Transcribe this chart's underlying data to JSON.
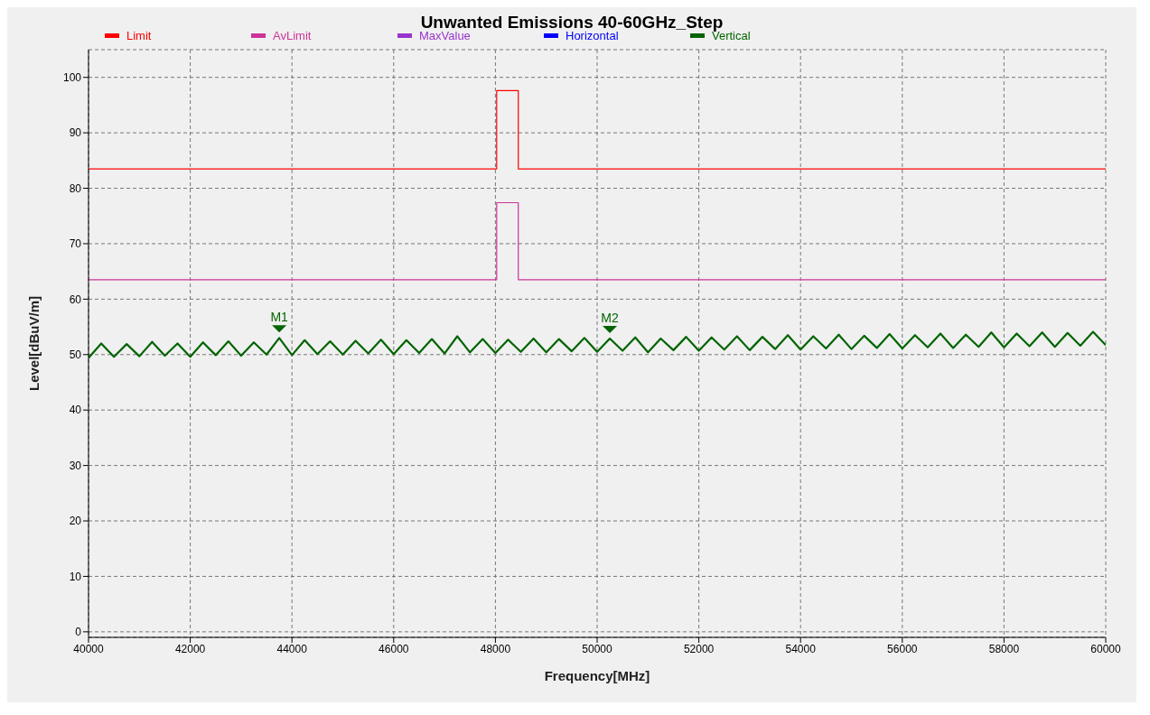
{
  "chart_data": {
    "type": "line",
    "title": "Unwanted Emissions 40-60GHz_Step",
    "xlabel": "Frequency[MHz]",
    "ylabel": "Level[dBuV/m]",
    "xlim": [
      40000,
      60000
    ],
    "xticks": [
      40000,
      42000,
      44000,
      46000,
      48000,
      50000,
      52000,
      54000,
      56000,
      58000,
      60000
    ],
    "ylim": [
      -1,
      105
    ],
    "yticks": [
      0,
      10,
      20,
      30,
      40,
      50,
      60,
      70,
      80,
      90,
      100
    ],
    "grid": true,
    "legend": "top",
    "marker": "none",
    "line_style": "solid",
    "series": [
      {
        "name": "Limit",
        "color": "#ff0000",
        "x": [
          40000,
          48025,
          48025,
          48450,
          48450,
          60000
        ],
        "values": [
          83.5,
          83.5,
          97.6,
          97.6,
          83.5,
          83.5
        ]
      },
      {
        "name": "AvLimit",
        "color": "#cc3399",
        "x": [
          40000,
          48025,
          48025,
          48450,
          48450,
          60000
        ],
        "values": [
          63.5,
          63.5,
          77.4,
          77.4,
          63.5,
          63.5
        ]
      },
      {
        "name": "MaxValue",
        "color": "#9933cc"
      },
      {
        "name": "Horizontal",
        "color": "#0000ff"
      },
      {
        "name": "Vertical",
        "color": "#006400",
        "x": [
          40000,
          40250,
          40500,
          40750,
          41000,
          41250,
          41500,
          41750,
          42000,
          42250,
          42500,
          42750,
          43000,
          43250,
          43500,
          43750,
          44000,
          44250,
          44500,
          44750,
          45000,
          45250,
          45500,
          45750,
          46000,
          46250,
          46500,
          46750,
          47000,
          47250,
          47500,
          47750,
          48000,
          48250,
          48500,
          48750,
          49000,
          49250,
          49500,
          49750,
          50000,
          50250,
          50500,
          50750,
          51000,
          51250,
          51500,
          51750,
          52000,
          52250,
          52500,
          52750,
          53000,
          53250,
          53500,
          53750,
          54000,
          54250,
          54500,
          54750,
          55000,
          55250,
          55500,
          55750,
          56000,
          56250,
          56500,
          56750,
          57000,
          57250,
          57500,
          57750,
          58000,
          58250,
          58500,
          58750,
          59000,
          59250,
          59500,
          59750,
          60000
        ],
        "values": [
          49.4,
          52.0,
          49.6,
          51.9,
          49.7,
          52.3,
          49.8,
          52.0,
          49.6,
          52.2,
          49.9,
          52.4,
          49.8,
          52.2,
          50.0,
          53.0,
          49.9,
          52.6,
          50.1,
          52.4,
          50.0,
          52.5,
          50.2,
          52.7,
          50.1,
          52.6,
          50.3,
          52.8,
          50.2,
          53.3,
          50.4,
          52.8,
          50.3,
          52.7,
          50.5,
          52.9,
          50.4,
          52.8,
          50.6,
          53.0,
          50.5,
          52.9,
          50.7,
          53.1,
          50.4,
          52.9,
          50.8,
          53.2,
          50.7,
          53.1,
          50.9,
          53.3,
          50.8,
          53.2,
          51.0,
          53.5,
          50.9,
          53.3,
          51.1,
          53.6,
          51.0,
          53.4,
          51.2,
          53.7,
          51.1,
          53.5,
          51.3,
          53.8,
          51.2,
          53.6,
          51.4,
          54.0,
          51.3,
          53.8,
          51.5,
          54.0,
          51.4,
          53.9,
          51.6,
          54.1,
          51.7
        ]
      }
    ],
    "annotations": [
      {
        "text": "M1",
        "x": 43750,
        "y": 53.0
      },
      {
        "text": "M2",
        "x": 50250,
        "y": 52.9
      }
    ]
  }
}
